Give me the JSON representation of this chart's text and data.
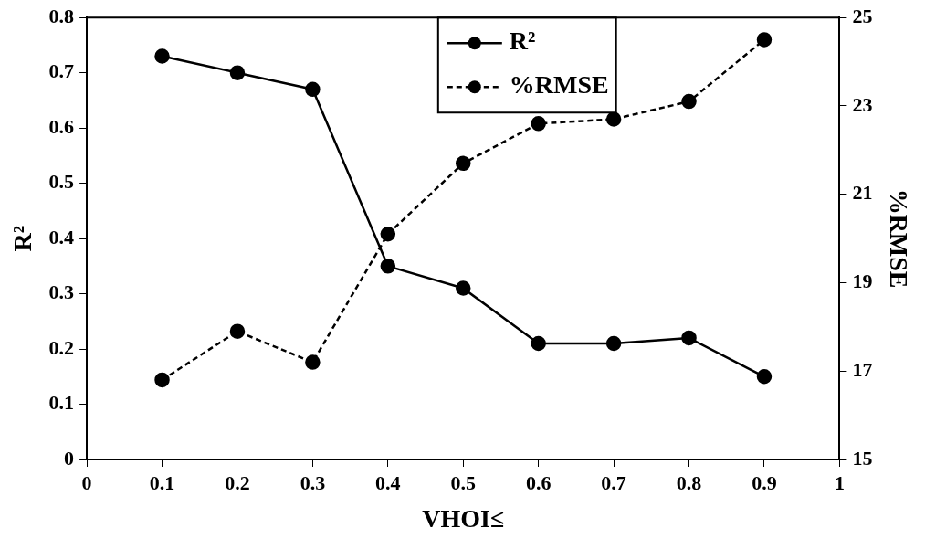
{
  "chart_data": {
    "type": "line",
    "xlabel": "VHOI≤",
    "ylabel": "R²",
    "y2label": "%RMSE",
    "x": [
      0.1,
      0.2,
      0.3,
      0.4,
      0.5,
      0.6,
      0.7,
      0.8,
      0.9
    ],
    "series": [
      {
        "name": "R²",
        "color": "#000000",
        "line_style": "solid",
        "values": [
          0.73,
          0.7,
          0.67,
          0.35,
          0.31,
          0.21,
          0.21,
          0.22,
          0.15
        ]
      },
      {
        "name": "%RMSE",
        "color": "#000000",
        "line_style": "dashed",
        "axis": "y2",
        "values": [
          16.8,
          17.9,
          17.2,
          20.1,
          21.7,
          22.6,
          22.7,
          23.1,
          24.5
        ]
      }
    ],
    "xlim": [
      0,
      1
    ],
    "xticks": [
      0,
      0.1,
      0.2,
      0.3,
      0.4,
      0.5,
      0.6,
      0.7,
      0.8,
      0.9,
      1
    ],
    "ylim": [
      0,
      0.8
    ],
    "yticks": [
      0,
      0.1,
      0.2,
      0.3,
      0.4,
      0.5,
      0.6,
      0.7,
      0.8
    ],
    "y2lim": [
      15,
      25
    ],
    "y2ticks": [
      15,
      17,
      19,
      21,
      23,
      25
    ],
    "marker": "circle",
    "grid": false,
    "legend": "top"
  }
}
